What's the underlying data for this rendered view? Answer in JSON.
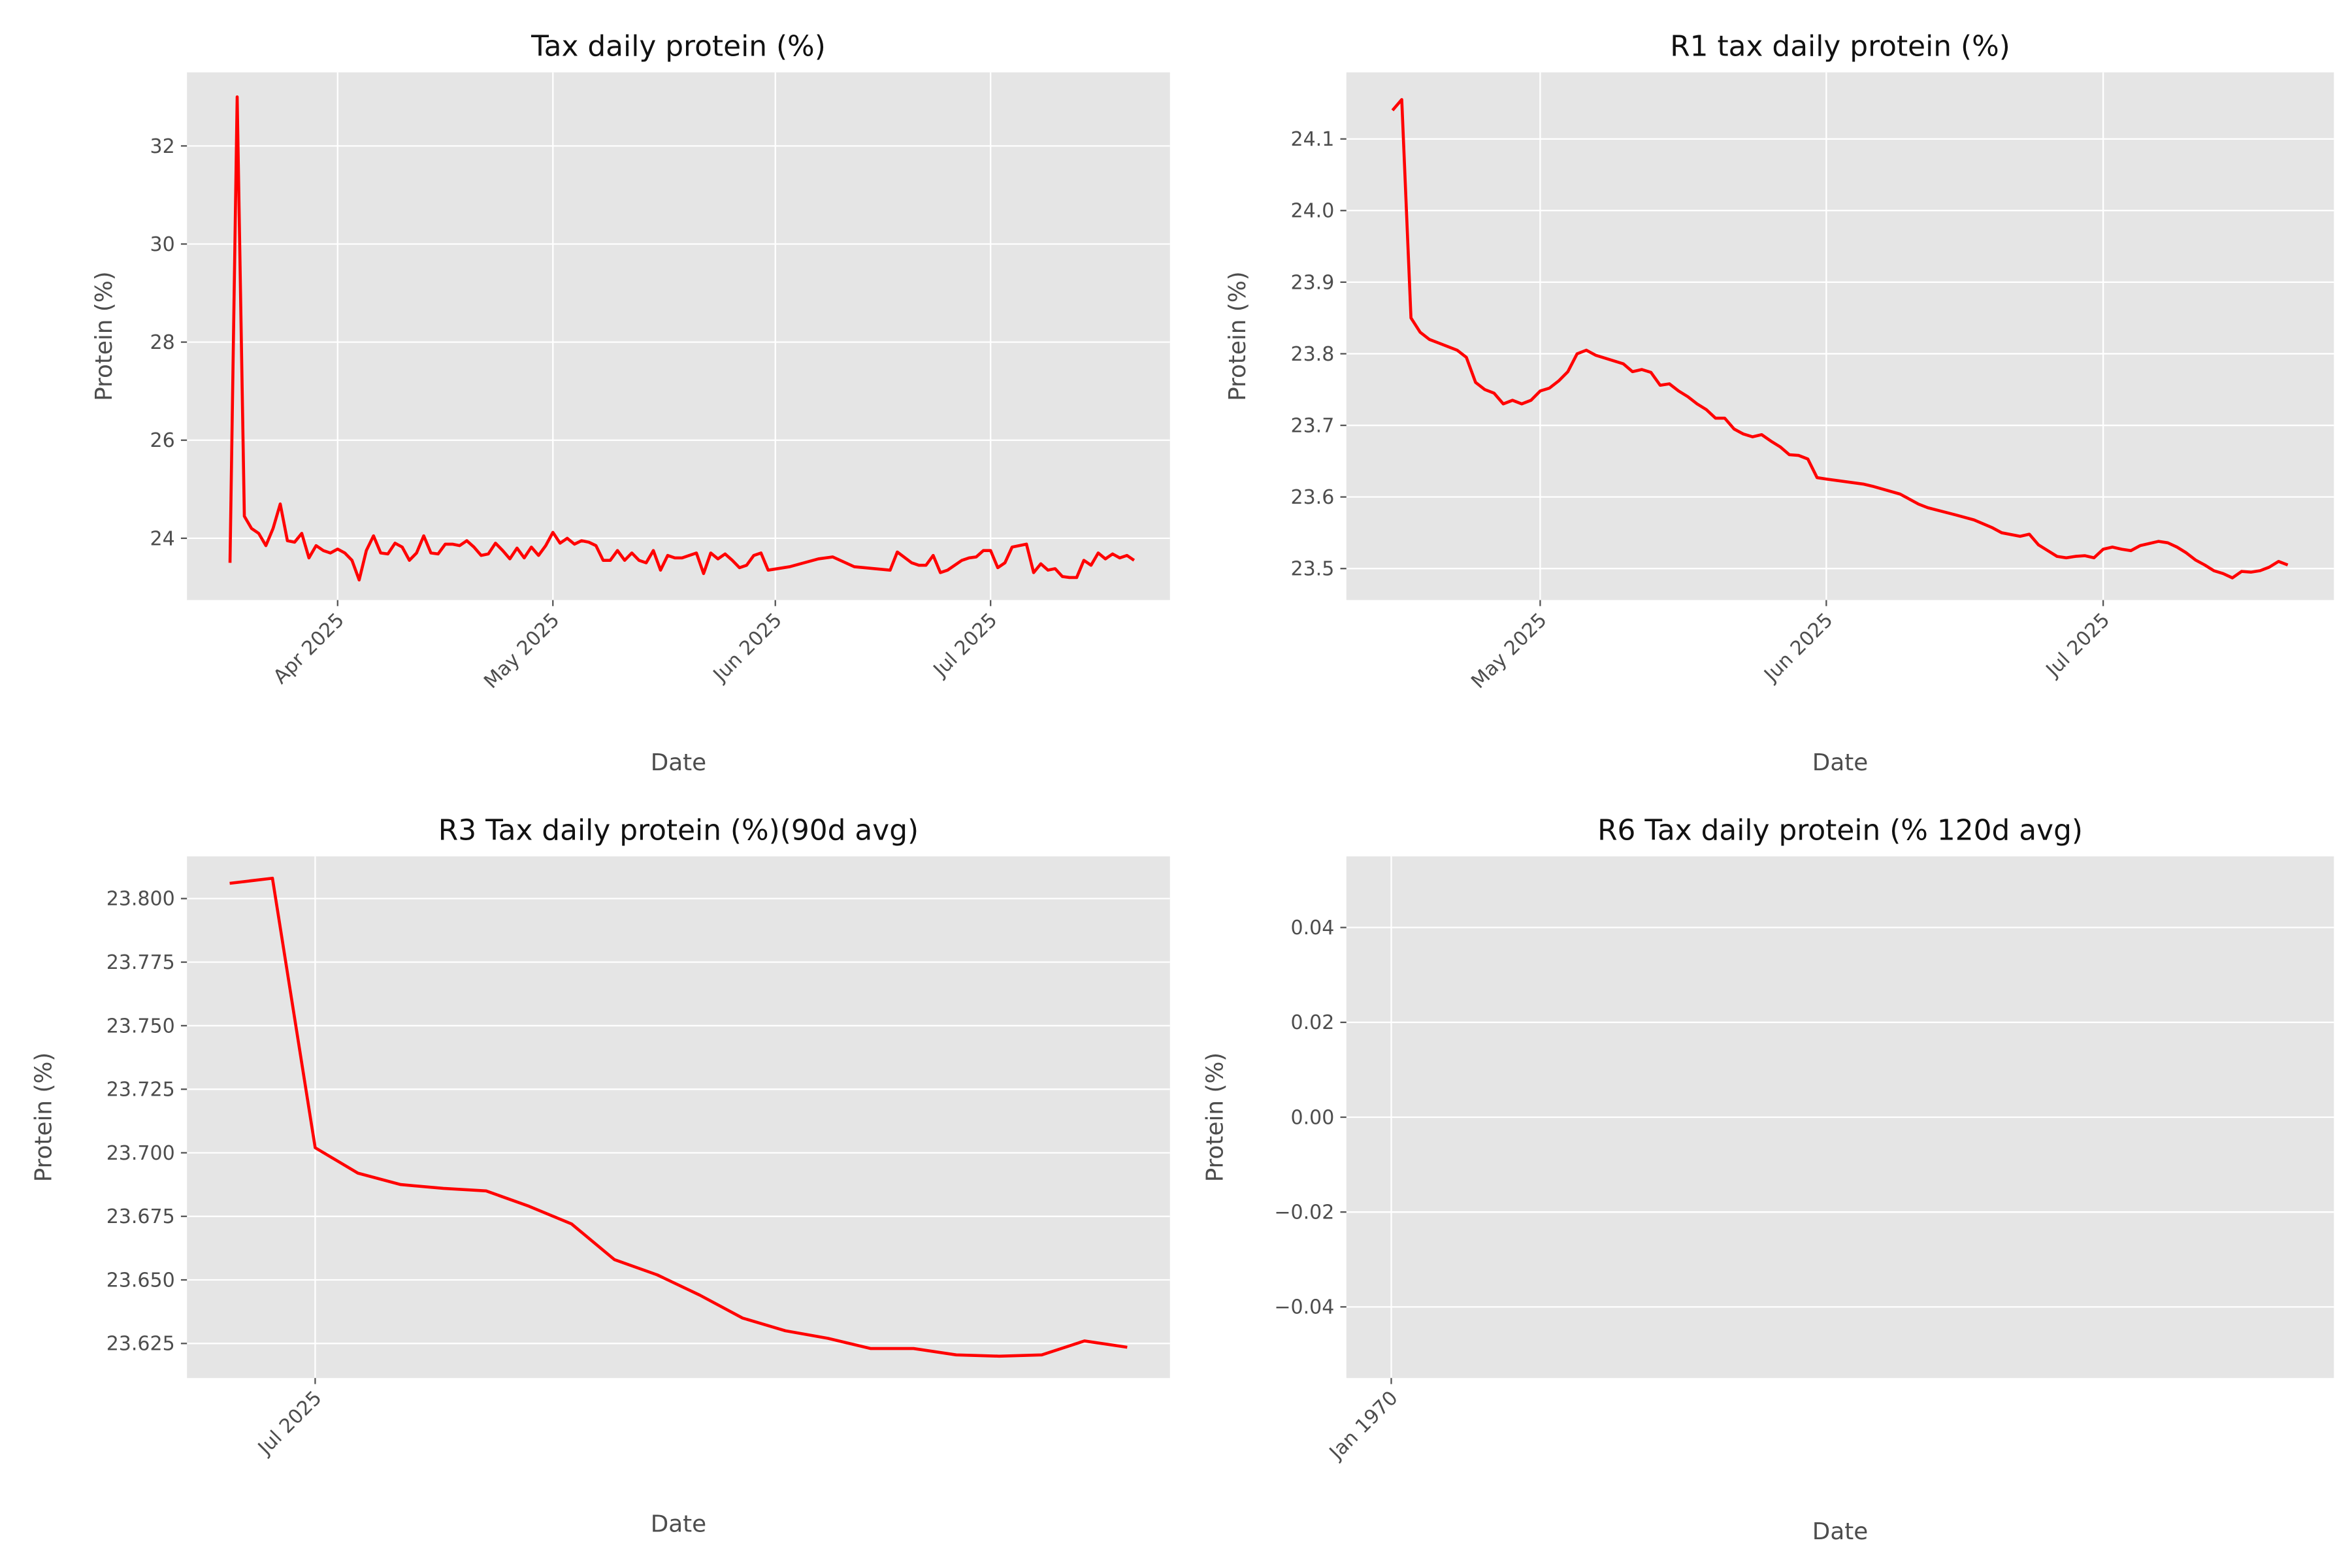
{
  "chart_data": [
    {
      "type": "line",
      "title": "Tax daily protein (%)",
      "xlabel": "Date",
      "ylabel": "Protein (%)",
      "color": "#ff0000",
      "grid": true,
      "x": [
        "2025-03-17",
        "2025-03-18",
        "2025-03-19",
        "2025-03-20",
        "2025-03-21",
        "2025-03-22",
        "2025-03-23",
        "2025-03-24",
        "2025-03-25",
        "2025-03-26",
        "2025-03-27",
        "2025-03-28",
        "2025-03-29",
        "2025-03-30",
        "2025-03-31",
        "2025-04-01",
        "2025-04-02",
        "2025-04-03",
        "2025-04-04",
        "2025-04-05",
        "2025-04-06",
        "2025-04-07",
        "2025-04-08",
        "2025-04-09",
        "2025-04-10",
        "2025-04-11",
        "2025-04-12",
        "2025-04-13",
        "2025-04-14",
        "2025-04-15",
        "2025-04-16",
        "2025-04-17",
        "2025-04-18",
        "2025-04-19",
        "2025-04-20",
        "2025-04-21",
        "2025-04-22",
        "2025-04-23",
        "2025-04-24",
        "2025-04-25",
        "2025-04-26",
        "2025-04-27",
        "2025-04-28",
        "2025-04-29",
        "2025-04-30",
        "2025-05-01",
        "2025-05-02",
        "2025-05-03",
        "2025-05-04",
        "2025-05-05",
        "2025-05-06",
        "2025-05-07",
        "2025-05-08",
        "2025-05-09",
        "2025-05-10",
        "2025-05-11",
        "2025-05-12",
        "2025-05-13",
        "2025-05-14",
        "2025-05-15",
        "2025-05-16",
        "2025-05-17",
        "2025-05-18",
        "2025-05-19",
        "2025-05-20",
        "2025-05-21",
        "2025-05-22",
        "2025-05-23",
        "2025-05-24",
        "2025-05-25",
        "2025-05-26",
        "2025-05-27",
        "2025-05-28",
        "2025-05-29",
        "2025-05-30",
        "2025-05-31",
        "2025-06-03",
        "2025-06-05",
        "2025-06-07",
        "2025-06-09",
        "2025-06-12",
        "2025-06-17",
        "2025-06-18",
        "2025-06-20",
        "2025-06-21",
        "2025-06-22",
        "2025-06-23",
        "2025-06-24",
        "2025-06-25",
        "2025-06-27",
        "2025-06-28",
        "2025-06-29",
        "2025-06-30",
        "2025-07-01",
        "2025-07-02",
        "2025-07-03",
        "2025-07-04",
        "2025-07-05",
        "2025-07-06",
        "2025-07-07",
        "2025-07-08",
        "2025-07-09",
        "2025-07-10",
        "2025-07-11",
        "2025-07-12",
        "2025-07-13",
        "2025-07-14",
        "2025-07-15",
        "2025-07-16",
        "2025-07-17",
        "2025-07-18",
        "2025-07-19",
        "2025-07-20",
        "2025-07-21"
      ],
      "values": [
        23.5,
        33.0,
        24.45,
        24.2,
        24.1,
        23.85,
        24.2,
        24.7,
        23.95,
        23.92,
        24.1,
        23.6,
        23.85,
        23.75,
        23.7,
        23.78,
        23.7,
        23.55,
        23.15,
        23.75,
        24.05,
        23.7,
        23.68,
        23.9,
        23.82,
        23.55,
        23.7,
        24.05,
        23.7,
        23.68,
        23.88,
        23.88,
        23.85,
        23.95,
        23.82,
        23.65,
        23.68,
        23.9,
        23.75,
        23.58,
        23.8,
        23.6,
        23.82,
        23.65,
        23.85,
        24.12,
        23.9,
        24.0,
        23.88,
        23.95,
        23.92,
        23.85,
        23.55,
        23.55,
        23.75,
        23.55,
        23.7,
        23.55,
        23.5,
        23.75,
        23.35,
        23.65,
        23.6,
        23.6,
        23.65,
        23.7,
        23.28,
        23.7,
        23.58,
        23.68,
        23.55,
        23.4,
        23.45,
        23.65,
        23.7,
        23.35,
        23.42,
        23.5,
        23.58,
        23.62,
        23.42,
        23.35,
        23.72,
        23.5,
        23.45,
        23.45,
        23.65,
        23.3,
        23.35,
        23.55,
        23.6,
        23.62,
        23.75,
        23.75,
        23.4,
        23.5,
        23.82,
        23.85,
        23.88,
        23.3,
        23.48,
        23.35,
        23.38,
        23.22,
        23.2,
        23.2,
        23.55,
        23.45,
        23.7,
        23.58,
        23.68,
        23.6,
        23.65,
        23.55
      ],
      "xlim": [
        "2025-03-11",
        "2025-07-26"
      ],
      "xticks": [
        {
          "value": "2025-04-01",
          "label": "Apr 2025"
        },
        {
          "value": "2025-05-01",
          "label": "May 2025"
        },
        {
          "value": "2025-06-01",
          "label": "Jun 2025"
        },
        {
          "value": "2025-07-01",
          "label": "Jul 2025"
        }
      ],
      "ylim": [
        22.74,
        33.5
      ],
      "yticks": [
        24,
        26,
        28,
        30,
        32
      ]
    },
    {
      "type": "line",
      "title": "R1 tax daily protein (%)",
      "xlabel": "Date",
      "ylabel": "Protein (%)",
      "color": "#ff0000",
      "grid": true,
      "x": [
        "2025-04-15",
        "2025-04-16",
        "2025-04-17",
        "2025-04-18",
        "2025-04-19",
        "2025-04-20",
        "2025-04-21",
        "2025-04-22",
        "2025-04-23",
        "2025-04-24",
        "2025-04-25",
        "2025-04-26",
        "2025-04-27",
        "2025-04-28",
        "2025-04-29",
        "2025-04-30",
        "2025-05-01",
        "2025-05-02",
        "2025-05-03",
        "2025-05-04",
        "2025-05-05",
        "2025-05-06",
        "2025-05-07",
        "2025-05-08",
        "2025-05-09",
        "2025-05-10",
        "2025-05-11",
        "2025-05-12",
        "2025-05-13",
        "2025-05-14",
        "2025-05-15",
        "2025-05-16",
        "2025-05-17",
        "2025-05-18",
        "2025-05-19",
        "2025-05-20",
        "2025-05-21",
        "2025-05-22",
        "2025-05-23",
        "2025-05-24",
        "2025-05-25",
        "2025-05-26",
        "2025-05-27",
        "2025-05-28",
        "2025-05-29",
        "2025-05-30",
        "2025-05-31",
        "2025-06-01",
        "2025-06-05",
        "2025-06-06",
        "2025-06-09",
        "2025-06-11",
        "2025-06-12",
        "2025-06-15",
        "2025-06-17",
        "2025-06-19",
        "2025-06-20",
        "2025-06-22",
        "2025-06-23",
        "2025-06-24",
        "2025-06-25",
        "2025-06-26",
        "2025-06-27",
        "2025-06-28",
        "2025-06-29",
        "2025-06-30",
        "2025-07-01",
        "2025-07-02",
        "2025-07-03",
        "2025-07-04",
        "2025-07-05",
        "2025-07-06",
        "2025-07-07",
        "2025-07-08",
        "2025-07-09",
        "2025-07-10",
        "2025-07-11",
        "2025-07-12",
        "2025-07-13",
        "2025-07-14",
        "2025-07-15",
        "2025-07-16",
        "2025-07-17",
        "2025-07-18",
        "2025-07-19",
        "2025-07-20",
        "2025-07-21"
      ],
      "values": [
        24.14,
        24.155,
        23.85,
        23.83,
        23.82,
        23.815,
        23.81,
        23.805,
        23.795,
        23.76,
        23.75,
        23.745,
        23.73,
        23.735,
        23.73,
        23.735,
        23.748,
        23.752,
        23.762,
        23.775,
        23.8,
        23.805,
        23.798,
        23.794,
        23.79,
        23.786,
        23.775,
        23.778,
        23.774,
        23.756,
        23.758,
        23.748,
        23.74,
        23.73,
        23.722,
        23.71,
        23.71,
        23.695,
        23.688,
        23.684,
        23.687,
        23.678,
        23.67,
        23.659,
        23.658,
        23.653,
        23.627,
        23.625,
        23.618,
        23.615,
        23.604,
        23.59,
        23.585,
        23.575,
        23.568,
        23.557,
        23.55,
        23.545,
        23.548,
        23.533,
        23.525,
        23.517,
        23.515,
        23.517,
        23.518,
        23.515,
        23.527,
        23.53,
        23.527,
        23.525,
        23.532,
        23.535,
        23.538,
        23.536,
        23.53,
        23.522,
        23.512,
        23.505,
        23.497,
        23.493,
        23.487,
        23.496,
        23.495,
        23.497,
        23.502,
        23.51,
        23.505
      ],
      "xlim": [
        "2025-04-10",
        "2025-07-26"
      ],
      "xticks": [
        {
          "value": "2025-05-01",
          "label": "May 2025"
        },
        {
          "value": "2025-06-01",
          "label": "Jun 2025"
        },
        {
          "value": "2025-07-01",
          "label": "Jul 2025"
        }
      ],
      "ylim": [
        23.456,
        24.193
      ],
      "yticks": [
        23.5,
        23.6,
        23.7,
        23.8,
        23.9,
        {
          "value": 24,
          "label": "24.0"
        },
        24.1
      ]
    },
    {
      "type": "line",
      "title": "R3 Tax daily protein (%)(90d avg)",
      "xlabel": "Date",
      "ylabel": "Protein (%)",
      "color": "#ff0000",
      "grid": true,
      "x": [
        "2025-06-29",
        "2025-06-30",
        "2025-07-01",
        "2025-07-02",
        "2025-07-03",
        "2025-07-04",
        "2025-07-05",
        "2025-07-06",
        "2025-07-07",
        "2025-07-08",
        "2025-07-09",
        "2025-07-10",
        "2025-07-11",
        "2025-07-12",
        "2025-07-13",
        "2025-07-14",
        "2025-07-15",
        "2025-07-16",
        "2025-07-17",
        "2025-07-18",
        "2025-07-19",
        "2025-07-20"
      ],
      "values": [
        23.806,
        23.808,
        23.702,
        23.692,
        23.6875,
        23.686,
        23.685,
        23.679,
        23.672,
        23.658,
        23.652,
        23.644,
        23.635,
        23.63,
        23.627,
        23.623,
        23.623,
        23.6205,
        23.62,
        23.6205,
        23.626,
        23.6235
      ],
      "xlim": [
        "2025-06-28",
        "2025-07-21"
      ],
      "xticks": [
        {
          "value": "2025-07-01",
          "label": "Jul 2025"
        }
      ],
      "ylim": [
        23.6114,
        23.8166
      ],
      "yticks": [
        23.625,
        {
          "value": 23.65,
          "label": "23.650"
        },
        23.675,
        {
          "value": 23.7,
          "label": "23.700"
        },
        23.725,
        {
          "value": 23.75,
          "label": "23.750"
        },
        23.775,
        {
          "value": 23.8,
          "label": "23.800"
        }
      ]
    },
    {
      "type": "line",
      "title": "R6 Tax daily protein  (% 120d avg)",
      "xlabel": "Date",
      "ylabel": "Protein (%)",
      "color": "#ff0000",
      "grid": true,
      "x": [],
      "values": [],
      "xlim": [
        "1969-12-31",
        "1970-01-22"
      ],
      "xticks": [
        {
          "value": "1970-01-01",
          "label": "Jan 1970"
        }
      ],
      "ylim": [
        -0.055,
        0.055
      ],
      "yticks": [
        {
          "value": -0.04,
          "label": "−0.04"
        },
        {
          "value": -0.02,
          "label": "−0.02"
        },
        {
          "value": 0,
          "label": "0.00"
        },
        {
          "value": 0.02,
          "label": "0.02"
        },
        {
          "value": 0.04,
          "label": "0.04"
        }
      ]
    }
  ]
}
